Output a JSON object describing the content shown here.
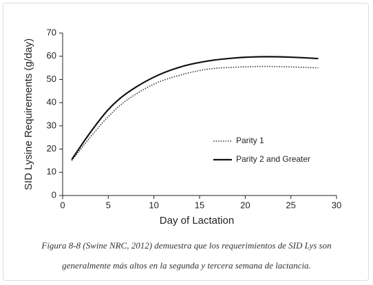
{
  "chart_data": {
    "type": "line",
    "xlabel": "Day of Lactation",
    "ylabel": "SID Lysine Requirements  (g/day)",
    "x": [
      1,
      3,
      5,
      7,
      10,
      13,
      16,
      19,
      22,
      25,
      28
    ],
    "series": [
      {
        "name": "Parity 1",
        "color": "#333333",
        "style": "dotted",
        "values": [
          15,
          25,
          34,
          41,
          48,
          52,
          54.5,
          55.3,
          55.6,
          55.4,
          55
        ]
      },
      {
        "name": "Parity 2 and Greater",
        "color": "#111111",
        "style": "solid",
        "values": [
          15.5,
          27,
          37,
          44,
          51,
          55.5,
          58,
          59.3,
          59.8,
          59.6,
          59
        ]
      }
    ],
    "xlim": [
      0,
      30
    ],
    "xticks": [
      0,
      5,
      10,
      15,
      20,
      25,
      30
    ],
    "ylim": [
      0,
      70
    ],
    "yticks": [
      0,
      10,
      20,
      30,
      40,
      50,
      60,
      70
    ],
    "grid": false,
    "caption": "Figura 8-8 (Swine NRC, 2012) demuestra que los requerimientos de SID Lys son generalmente más altos en la segunda y tercera semana de lactancia."
  }
}
